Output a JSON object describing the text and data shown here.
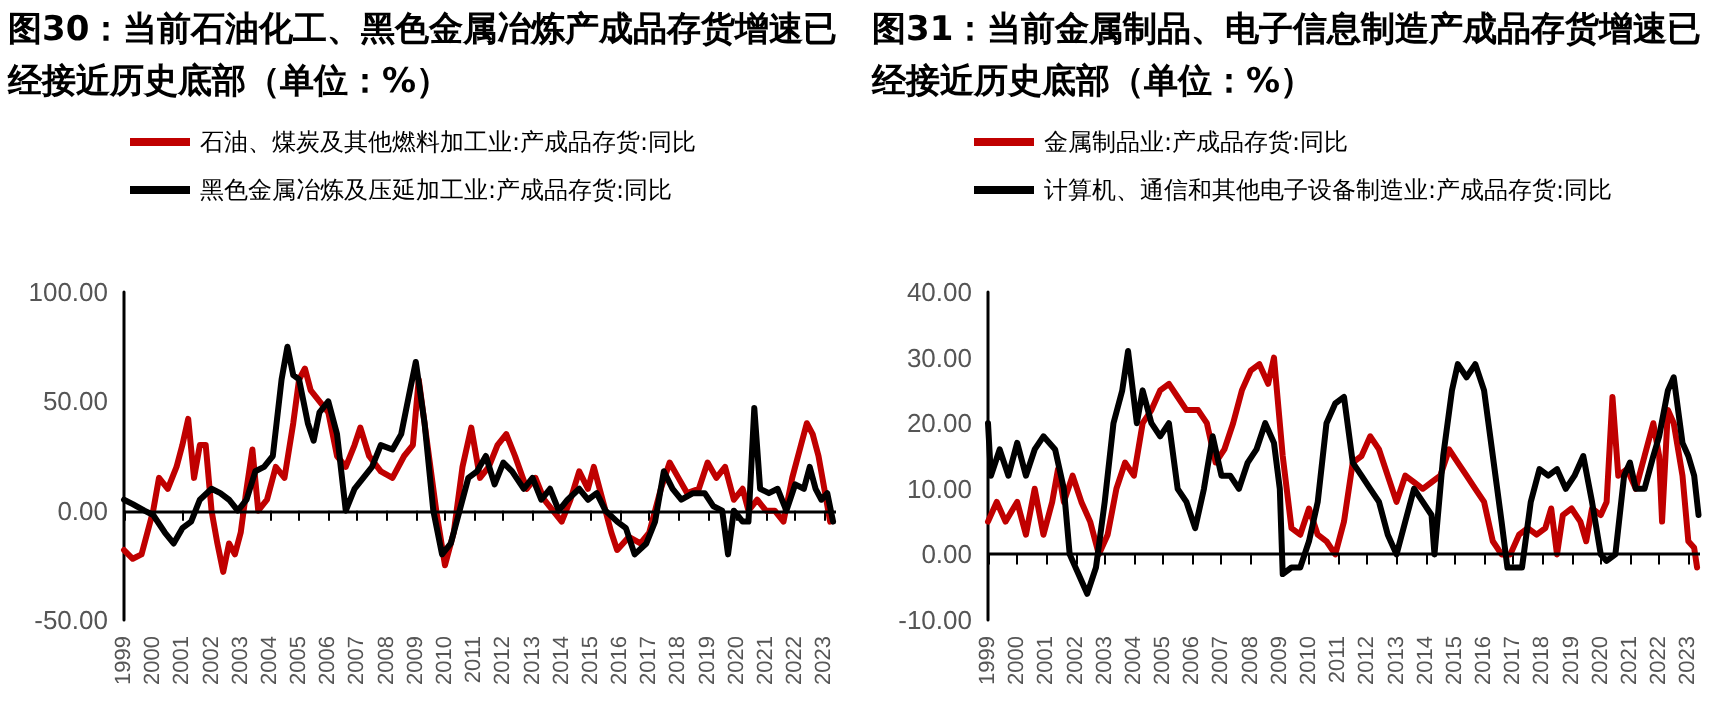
{
  "chart_data": [
    {
      "type": "line",
      "title": "图30：当前石油化工、黑色金属冶炼产成品存货增速已经接近历史底部（单位：%）",
      "legend": "top left",
      "marker": "none",
      "grid": false,
      "xlim": [
        1999,
        2023.4
      ],
      "xticks": [
        1999,
        2000,
        2001,
        2002,
        2003,
        2004,
        2005,
        2006,
        2007,
        2008,
        2009,
        2010,
        2011,
        2012,
        2013,
        2014,
        2015,
        2016,
        2017,
        2018,
        2019,
        2020,
        2021,
        2022,
        2023
      ],
      "ylim": [
        -50,
        100
      ],
      "yticks": [
        {
          "value": -50,
          "label": "-50.00"
        },
        {
          "value": 0,
          "label": "0.00"
        },
        {
          "value": 50,
          "label": "50.00"
        },
        {
          "value": 100,
          "label": "100.00"
        }
      ],
      "ref_lines": [
        {
          "axis": "y",
          "value": 0,
          "color": "#000000"
        }
      ],
      "series": [
        {
          "name": "石油、煤炭及其他燃料加工业:产成品存货:同比",
          "color": "#c00000",
          "x": [
            1999,
            1999.3,
            1999.6,
            2000,
            2000.2,
            2000.5,
            2000.8,
            2001,
            2001.2,
            2001.4,
            2001.6,
            2001.8,
            2002,
            2002.2,
            2002.4,
            2002.6,
            2002.8,
            2003,
            2003.2,
            2003.4,
            2003.6,
            2003.9,
            2004.2,
            2004.5,
            2004.8,
            2005,
            2005.2,
            2005.4,
            2005.7,
            2006,
            2006.3,
            2006.6,
            2006.9,
            2007.1,
            2007.4,
            2007.8,
            2008.2,
            2008.6,
            2008.9,
            2009.1,
            2009.4,
            2009.7,
            2010,
            2010.3,
            2010.6,
            2010.9,
            2011.2,
            2011.5,
            2011.8,
            2012.1,
            2012.4,
            2012.8,
            2013.1,
            2013.4,
            2013.7,
            2014,
            2014.3,
            2014.6,
            2014.9,
            2015.1,
            2015.4,
            2015.7,
            2015.9,
            2016.3,
            2016.7,
            2017,
            2017.4,
            2017.7,
            2018,
            2018.3,
            2018.7,
            2019,
            2019.3,
            2019.6,
            2019.9,
            2020.2,
            2020.4,
            2020.7,
            2021,
            2021.3,
            2021.6,
            2021.9,
            2022.2,
            2022.4,
            2022.6,
            2022.8,
            2023,
            2023.2
          ],
          "values": [
            -18,
            -22,
            -20,
            0,
            15,
            10,
            20,
            30,
            42,
            15,
            30,
            30,
            0,
            -15,
            -28,
            -15,
            -20,
            -10,
            10,
            28,
            0,
            5,
            20,
            15,
            40,
            60,
            65,
            55,
            50,
            45,
            25,
            20,
            30,
            38,
            25,
            18,
            15,
            25,
            30,
            60,
            30,
            0,
            -25,
            -10,
            20,
            38,
            15,
            20,
            30,
            35,
            25,
            10,
            15,
            5,
            0,
            -5,
            5,
            18,
            10,
            20,
            5,
            -10,
            -18,
            -12,
            -15,
            -10,
            10,
            22,
            15,
            8,
            10,
            22,
            15,
            20,
            5,
            10,
            0,
            5,
            0,
            0,
            -5,
            15,
            30,
            40,
            35,
            25,
            10,
            -5
          ]
        },
        {
          "name": "黑色金属冶炼及压延加工业:产成品存货:同比",
          "color": "#000000",
          "x": [
            1999,
            1999.3,
            1999.7,
            2000,
            2000.4,
            2000.7,
            2001,
            2001.3,
            2001.6,
            2002,
            2002.3,
            2002.6,
            2002.9,
            2003.2,
            2003.5,
            2003.8,
            2004.1,
            2004.4,
            2004.6,
            2004.8,
            2005,
            2005.3,
            2005.5,
            2005.7,
            2006,
            2006.3,
            2006.6,
            2006.9,
            2007.2,
            2007.5,
            2007.8,
            2008.2,
            2008.5,
            2008.8,
            2009,
            2009.3,
            2009.6,
            2009.9,
            2010.2,
            2010.5,
            2010.8,
            2011.1,
            2011.4,
            2011.7,
            2012,
            2012.3,
            2012.7,
            2013,
            2013.3,
            2013.6,
            2013.9,
            2014.2,
            2014.6,
            2014.9,
            2015.2,
            2015.5,
            2015.9,
            2016.2,
            2016.5,
            2016.9,
            2017.2,
            2017.5,
            2017.8,
            2018.1,
            2018.5,
            2018.9,
            2019.2,
            2019.5,
            2019.7,
            2019.9,
            2020.2,
            2020.4,
            2020.6,
            2020.8,
            2021.1,
            2021.4,
            2021.7,
            2022,
            2022.3,
            2022.5,
            2022.7,
            2022.9,
            2023.1,
            2023.3
          ],
          "values": [
            5,
            3,
            0,
            -2,
            -10,
            -15,
            -8,
            -5,
            5,
            10,
            8,
            5,
            0,
            5,
            18,
            20,
            25,
            60,
            75,
            62,
            60,
            40,
            32,
            45,
            50,
            35,
            0,
            10,
            15,
            20,
            30,
            28,
            35,
            55,
            68,
            40,
            0,
            -20,
            -15,
            0,
            15,
            18,
            25,
            12,
            22,
            18,
            10,
            15,
            5,
            10,
            0,
            5,
            10,
            5,
            8,
            0,
            -5,
            -8,
            -20,
            -15,
            -5,
            18,
            10,
            5,
            8,
            8,
            2,
            0,
            -20,
            0,
            -5,
            -5,
            47,
            10,
            8,
            10,
            0,
            12,
            10,
            20,
            10,
            5,
            8,
            -5
          ]
        }
      ]
    },
    {
      "type": "line",
      "title": "图31：当前金属制品、电子信息制造产成品存货增速已经接近历史底部（单位：%）",
      "legend": "top left",
      "marker": "none",
      "grid": false,
      "xlim": [
        1999,
        2023.4
      ],
      "xticks": [
        1999,
        2000,
        2001,
        2002,
        2003,
        2004,
        2005,
        2006,
        2007,
        2008,
        2009,
        2010,
        2011,
        2012,
        2013,
        2014,
        2015,
        2016,
        2017,
        2018,
        2019,
        2020,
        2021,
        2022,
        2023
      ],
      "ylim": [
        -10,
        40
      ],
      "yticks": [
        {
          "value": -10,
          "label": "-10.00"
        },
        {
          "value": 0,
          "label": "0.00"
        },
        {
          "value": 10,
          "label": "10.00"
        },
        {
          "value": 20,
          "label": "20.00"
        },
        {
          "value": 30,
          "label": "30.00"
        },
        {
          "value": 40,
          "label": "40.00"
        }
      ],
      "ref_lines": [
        {
          "axis": "y",
          "value": 0,
          "color": "#000000"
        }
      ],
      "series": [
        {
          "name": "金属制品业:产成品存货:同比",
          "color": "#c00000",
          "x": [
            1999,
            1999.3,
            1999.6,
            2000,
            2000.3,
            2000.6,
            2000.9,
            2001.2,
            2001.4,
            2001.6,
            2001.9,
            2002.2,
            2002.5,
            2002.8,
            2003.1,
            2003.4,
            2003.7,
            2004,
            2004.3,
            2004.6,
            2004.9,
            2005.2,
            2005.5,
            2005.8,
            2006.2,
            2006.5,
            2006.8,
            2007.1,
            2007.4,
            2007.7,
            2008,
            2008.3,
            2008.6,
            2008.8,
            2009.1,
            2009.4,
            2009.7,
            2010,
            2010.3,
            2010.6,
            2010.9,
            2011.2,
            2011.5,
            2011.8,
            2012.1,
            2012.4,
            2012.7,
            2013,
            2013.3,
            2013.6,
            2013.9,
            2014.2,
            2014.5,
            2014.8,
            2015.1,
            2015.4,
            2015.7,
            2016,
            2016.3,
            2016.6,
            2016.9,
            2017.2,
            2017.5,
            2017.8,
            2018.1,
            2018.3,
            2018.5,
            2018.7,
            2019,
            2019.3,
            2019.5,
            2019.7,
            2020,
            2020.2,
            2020.4,
            2020.6,
            2020.9,
            2021.2,
            2021.5,
            2021.8,
            2022,
            2022.1,
            2022.3,
            2022.5,
            2022.8,
            2023,
            2023.2,
            2023.3
          ],
          "values": [
            5,
            8,
            5,
            8,
            3,
            10,
            3,
            8,
            13,
            8,
            12,
            8,
            5,
            0,
            3,
            10,
            14,
            12,
            20,
            22,
            25,
            26,
            24,
            22,
            22,
            20,
            14,
            16,
            20,
            25,
            28,
            29,
            26,
            30,
            15,
            4,
            3,
            7,
            3,
            2,
            0,
            5,
            14,
            15,
            18,
            16,
            12,
            8,
            12,
            11,
            10,
            11,
            12,
            16,
            14,
            12,
            10,
            8,
            2,
            0,
            0,
            3,
            4,
            3,
            4,
            7,
            0,
            6,
            7,
            5,
            2,
            7,
            6,
            8,
            24,
            12,
            13,
            10,
            15,
            20,
            15,
            5,
            22,
            20,
            12,
            2,
            1,
            -2
          ]
        },
        {
          "name": "计算机、通信和其他电子设备制造业:产成品存货:同比",
          "color": "#000000",
          "x": [
            1999,
            1999.1,
            1999.4,
            1999.7,
            2000,
            2000.3,
            2000.6,
            2000.9,
            2001.3,
            2001.6,
            2001.8,
            2002.1,
            2002.4,
            2002.7,
            2003,
            2003.3,
            2003.6,
            2003.8,
            2004.1,
            2004.3,
            2004.6,
            2004.9,
            2005.2,
            2005.5,
            2005.8,
            2006.1,
            2006.4,
            2006.7,
            2007,
            2007.3,
            2007.6,
            2007.9,
            2008.2,
            2008.5,
            2008.8,
            2009,
            2009.1,
            2009.4,
            2009.7,
            2010,
            2010.3,
            2010.6,
            2010.9,
            2011.2,
            2011.5,
            2011.8,
            2012.1,
            2012.4,
            2012.7,
            2013,
            2013.3,
            2013.6,
            2013.9,
            2014.2,
            2014.3,
            2014.6,
            2014.9,
            2015.1,
            2015.4,
            2015.7,
            2016,
            2016.3,
            2016.6,
            2016.8,
            2017.1,
            2017.3,
            2017.6,
            2017.9,
            2018.2,
            2018.5,
            2018.8,
            2019.1,
            2019.4,
            2019.7,
            2020,
            2020.2,
            2020.5,
            2020.8,
            2021,
            2021.2,
            2021.5,
            2021.8,
            2022,
            2022.3,
            2022.5,
            2022.8,
            2023,
            2023.2,
            2023.35
          ],
          "values": [
            20,
            12,
            16,
            12,
            17,
            12,
            16,
            18,
            16,
            10,
            0,
            -3,
            -6,
            -2,
            8,
            20,
            25,
            31,
            20,
            25,
            20,
            18,
            20,
            10,
            8,
            4,
            10,
            18,
            12,
            12,
            10,
            14,
            16,
            20,
            17,
            10,
            -3,
            -2,
            -2,
            2,
            8,
            20,
            23,
            24,
            14,
            12,
            10,
            8,
            3,
            0,
            5,
            10,
            8,
            6,
            0,
            15,
            25,
            29,
            27,
            29,
            25,
            15,
            5,
            -2,
            -2,
            -2,
            8,
            13,
            12,
            13,
            10,
            12,
            15,
            8,
            0,
            -1,
            0,
            12,
            14,
            10,
            10,
            15,
            18,
            25,
            27,
            17,
            15,
            12,
            6
          ]
        }
      ]
    }
  ]
}
